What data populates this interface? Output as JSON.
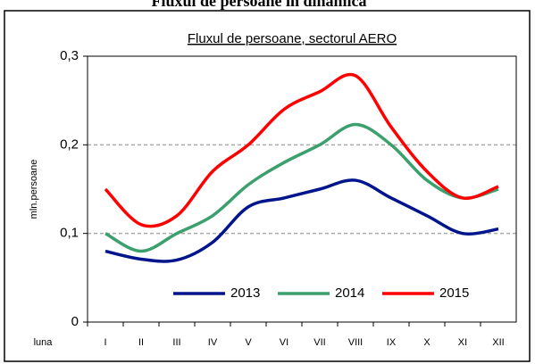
{
  "chart_data": {
    "type": "line",
    "heading": "Fluxul de persoane în dinamică",
    "title": "Fluxul de persoane, sectorul AERO",
    "y_label": "mln.persoane",
    "x_label": "luna",
    "categories": [
      "I",
      "II",
      "III",
      "IV",
      "V",
      "VI",
      "VII",
      "VIII",
      "IX",
      "X",
      "XI",
      "XII"
    ],
    "series": [
      {
        "name": "2013",
        "color": "#00158c",
        "values": [
          0.08,
          0.071,
          0.07,
          0.09,
          0.13,
          0.14,
          0.15,
          0.16,
          0.14,
          0.12,
          0.1,
          0.105
        ]
      },
      {
        "name": "2014",
        "color": "#3c9f6e",
        "values": [
          0.1,
          0.08,
          0.1,
          0.12,
          0.155,
          0.18,
          0.2,
          0.223,
          0.2,
          0.16,
          0.14,
          0.15
        ]
      },
      {
        "name": "2015",
        "color": "#ff0000",
        "values": [
          0.15,
          0.11,
          0.12,
          0.17,
          0.2,
          0.24,
          0.26,
          0.278,
          0.22,
          0.17,
          0.14,
          0.153
        ]
      }
    ],
    "ylim": [
      0,
      0.3
    ],
    "yticks": [
      0,
      {
        "value": 0.1,
        "label": "0,1"
      },
      {
        "value": 0.2,
        "label": "0,2"
      },
      {
        "value": 0.3,
        "label": "0,3"
      }
    ],
    "grid": true
  }
}
